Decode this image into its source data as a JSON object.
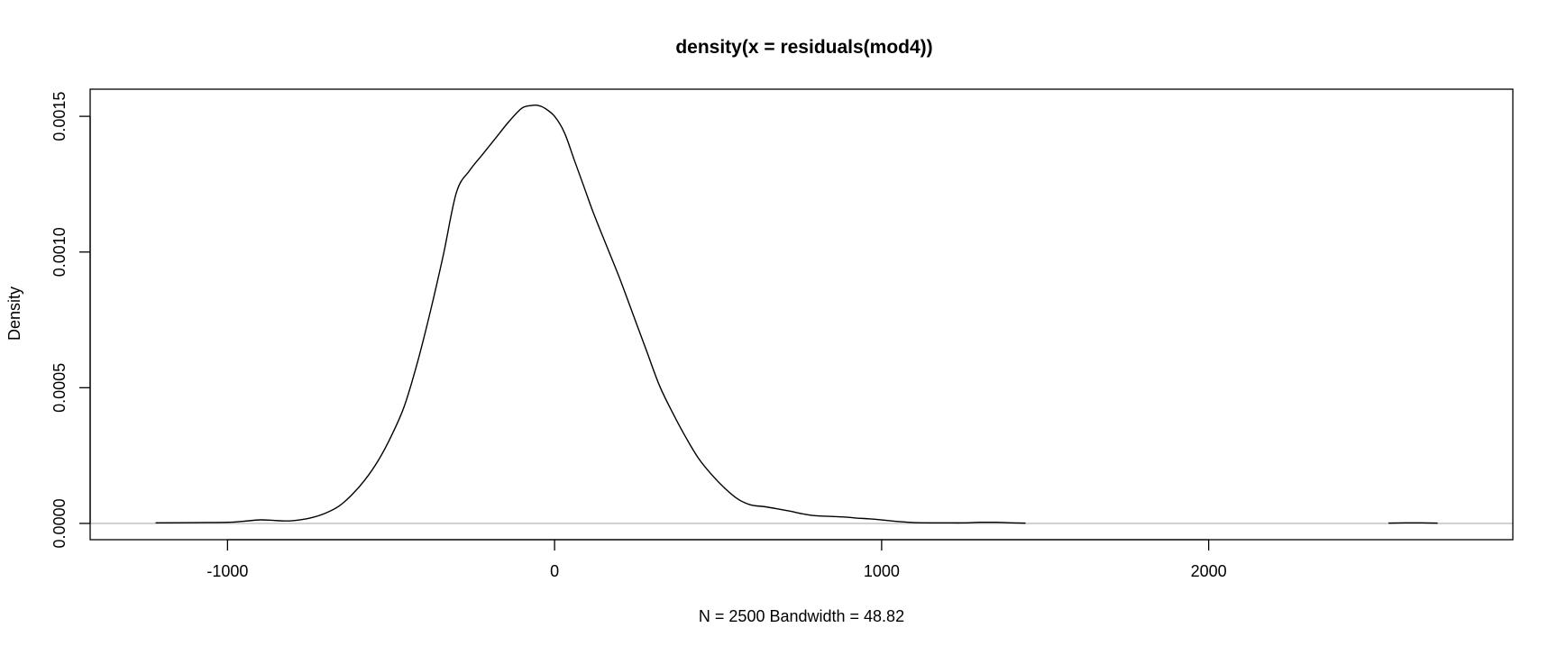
{
  "chart_data": {
    "type": "line",
    "title": "density(x = residuals(mod4))",
    "xlabel": "N = 2500   Bandwidth = 48.82",
    "ylabel": "Density",
    "xlim": [
      -1420,
      2930
    ],
    "ylim": [
      -6e-05,
      0.0016
    ],
    "x_ticks": [
      -1000,
      0,
      1000,
      2000
    ],
    "x_tick_labels": [
      "-1000",
      "0",
      "1000",
      "2000"
    ],
    "y_ticks": [
      0,
      0.0005,
      0.001,
      0.0015
    ],
    "y_tick_labels": [
      "0.0000",
      "0.0005",
      "0.0010",
      "0.0015"
    ],
    "grid": false,
    "reference_line_y": 0,
    "colors": {
      "curve": "#000000",
      "reference_line": "#bebebe",
      "frame": "#000000"
    },
    "series": [
      {
        "x": [
          -1220,
          -1100,
          -1000,
          -950,
          -900,
          -860,
          -820,
          -780,
          -740,
          -700,
          -660,
          -620,
          -580,
          -540,
          -500,
          -460,
          -420,
          -380,
          -340,
          -300,
          -260,
          -220,
          -180,
          -140,
          -100,
          -70,
          -50,
          -30,
          0,
          30,
          60,
          90,
          120,
          160,
          200,
          240,
          280,
          320,
          360,
          400,
          440,
          480,
          520,
          560,
          600,
          640,
          680,
          720,
          760,
          800,
          840,
          880,
          920,
          960,
          1000,
          1050,
          1100,
          1150,
          1200,
          1250,
          1300,
          1350,
          1400,
          1440
        ],
        "y": [
          2e-06,
          3e-06,
          4e-06,
          8e-06,
          1.3e-05,
          1.1e-05,
          9e-06,
          1.3e-05,
          2.2e-05,
          3.8e-05,
          6.3e-05,
          0.000105,
          0.00016,
          0.00023,
          0.00032,
          0.00043,
          0.00059,
          0.00078,
          0.00099,
          0.00122,
          0.0013,
          0.00136,
          0.00142,
          0.00148,
          0.00153,
          0.00154,
          0.00154,
          0.00153,
          0.0015,
          0.00144,
          0.00134,
          0.00124,
          0.00114,
          0.00102,
          0.0009,
          0.00077,
          0.00064,
          0.00051,
          0.00041,
          0.00032,
          0.00024,
          0.00018,
          0.00013,
          9e-05,
          6.8e-05,
          6.2e-05,
          5.4e-05,
          4.5e-05,
          3.5e-05,
          2.8e-05,
          2.6e-05,
          2.4e-05,
          2e-05,
          1.7e-05,
          1.3e-05,
          7e-06,
          3e-06,
          2e-06,
          2e-06,
          2e-06,
          4e-06,
          4e-06,
          2e-06,
          1e-06
        ]
      },
      {
        "x": [
          2550,
          2600,
          2650,
          2700
        ],
        "y": [
          1e-06,
          2e-06,
          2e-06,
          1e-06
        ]
      }
    ]
  }
}
